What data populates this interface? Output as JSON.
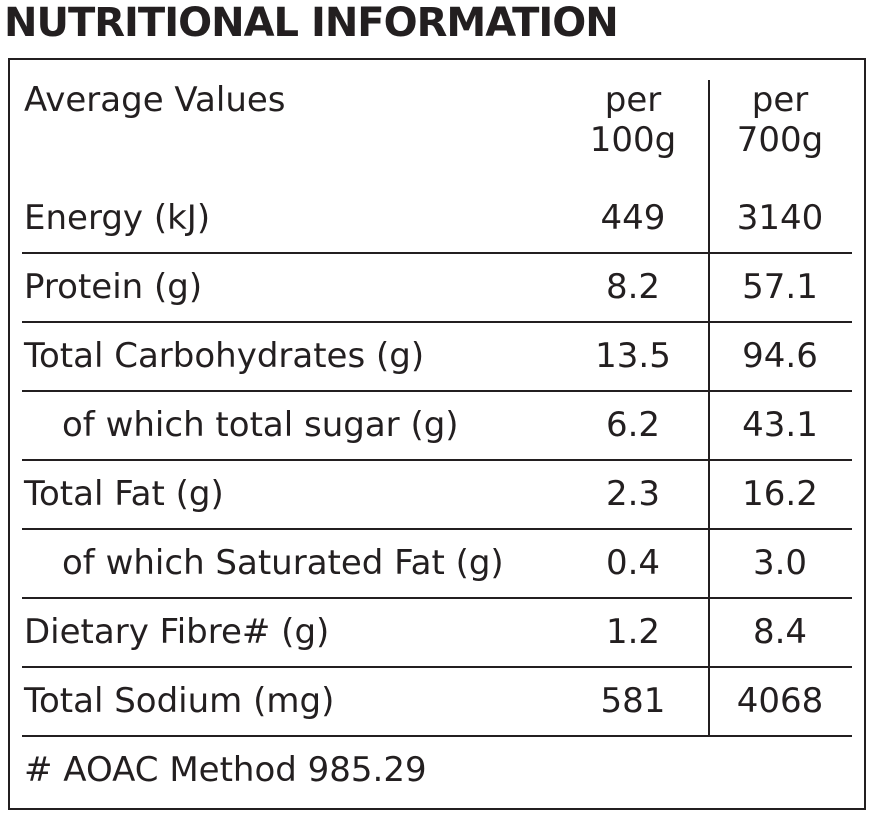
{
  "title": "NUTRITIONAL INFORMATION",
  "table": {
    "header": [
      "Average Values",
      "per\n100g",
      "per\n700g"
    ],
    "rows": [
      [
        "Energy (kJ)",
        "449",
        "3140"
      ],
      [
        "Protein (g)",
        "8.2",
        "57.1"
      ],
      [
        "Total Carbohydrates (g)",
        "13.5",
        "94.6"
      ],
      [
        "of which total sugar (g)",
        "6.2",
        "43.1"
      ],
      [
        "Total Fat (g)",
        "2.3",
        "16.2"
      ],
      [
        "of which Saturated Fat (g)",
        "0.4",
        "3.0"
      ],
      [
        "Dietary Fibre# (g)",
        "1.2",
        "8.4"
      ],
      [
        "Total Sodium (mg)",
        "581",
        "4068"
      ]
    ],
    "footnote": "# AOAC Method 985.29"
  }
}
